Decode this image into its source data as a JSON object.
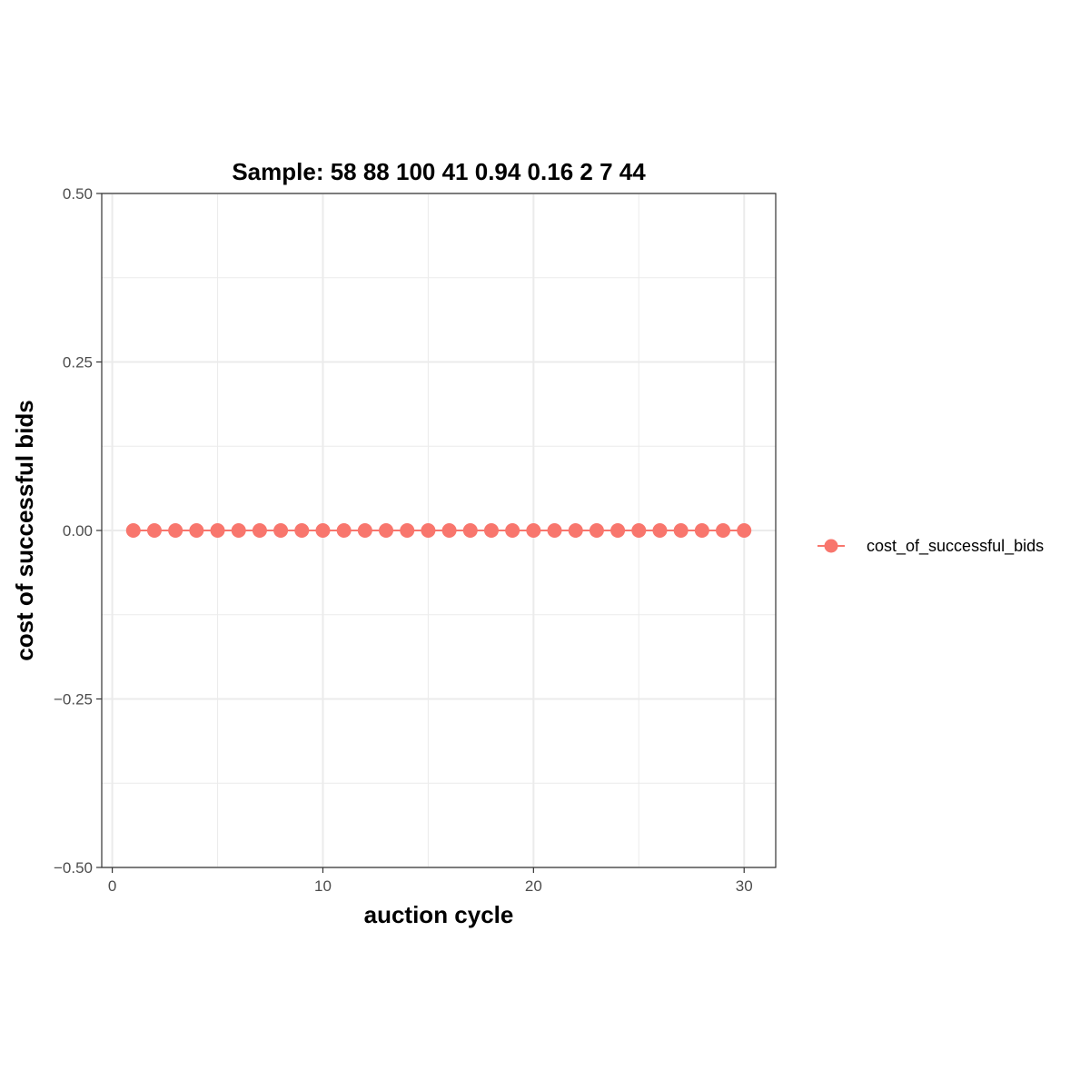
{
  "chart_data": {
    "type": "line",
    "title": "Sample: 58 88 100 41 0.94 0.16 2 7 44",
    "xlabel": "auction cycle",
    "ylabel": "cost of successful bids",
    "xlim": [
      -0.5,
      31.5
    ],
    "ylim": [
      -0.5,
      0.5
    ],
    "x_ticks": [
      0,
      10,
      20,
      30
    ],
    "x_tick_labels": [
      "0",
      "10",
      "20",
      "30"
    ],
    "y_ticks": [
      -0.5,
      -0.25,
      0,
      0.25,
      0.5
    ],
    "y_tick_labels": [
      "−0.50",
      "−0.25",
      "0.00",
      "0.25",
      "0.50"
    ],
    "grid": true,
    "legend_position": "right",
    "series": [
      {
        "name": "cost_of_successful_bids",
        "color": "#F8766D",
        "x": [
          1,
          2,
          3,
          4,
          5,
          6,
          7,
          8,
          9,
          10,
          11,
          12,
          13,
          14,
          15,
          16,
          17,
          18,
          19,
          20,
          21,
          22,
          23,
          24,
          25,
          26,
          27,
          28,
          29,
          30
        ],
        "y": [
          0,
          0,
          0,
          0,
          0,
          0,
          0,
          0,
          0,
          0,
          0,
          0,
          0,
          0,
          0,
          0,
          0,
          0,
          0,
          0,
          0,
          0,
          0,
          0,
          0,
          0,
          0,
          0,
          0,
          0
        ]
      }
    ]
  }
}
